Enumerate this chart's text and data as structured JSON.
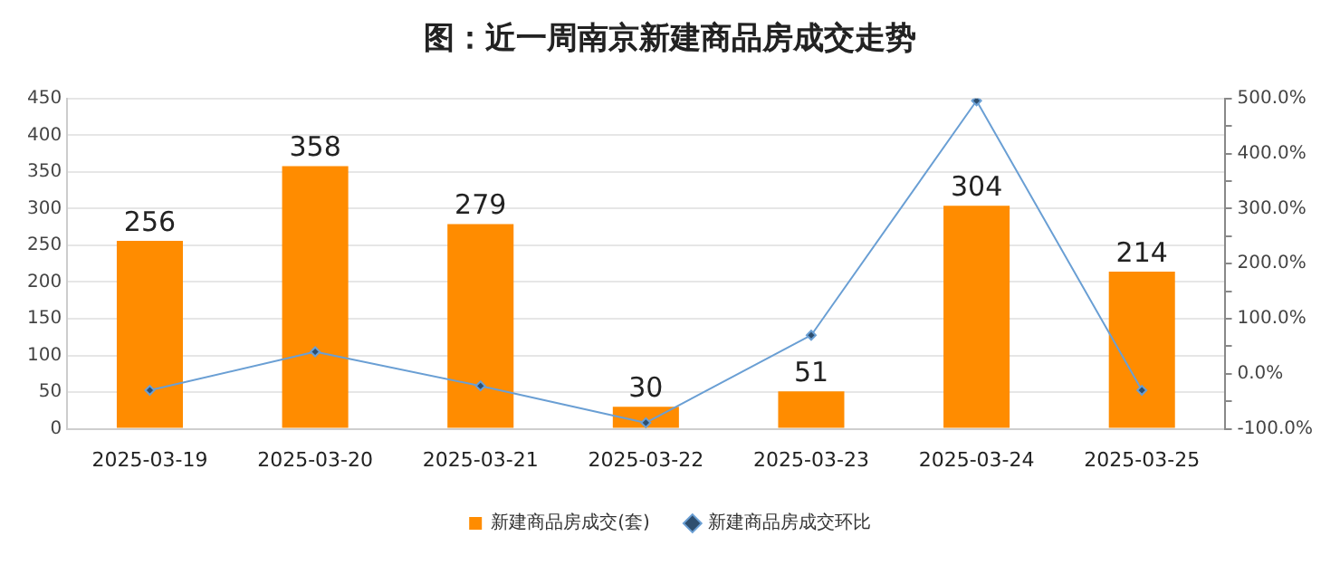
{
  "chart_data": {
    "type": "bar",
    "title": "图：近一周南京新建商品房成交走势",
    "categories": [
      "2025-03-19",
      "2025-03-20",
      "2025-03-21",
      "2025-03-22",
      "2025-03-23",
      "2025-03-24",
      "2025-03-25"
    ],
    "series": [
      {
        "name": "新建商品房成交(套)",
        "color": "#ff8c00",
        "values": [
          256,
          358,
          279,
          30,
          51,
          304,
          214
        ],
        "value_labels": [
          "256",
          "358",
          "279",
          "30",
          "51",
          "304",
          "214"
        ]
      },
      {
        "name": "新建商品房成交环比",
        "type": "line",
        "axis": "y2",
        "color": "#6a9fd4",
        "values": [
          -30,
          40,
          -22,
          -89,
          70,
          496,
          -30
        ]
      }
    ],
    "ylim": [
      0,
      450
    ],
    "yticks": [
      0,
      50,
      100,
      150,
      200,
      250,
      300,
      350,
      400,
      450
    ],
    "y2lim": [
      -100,
      500
    ],
    "y2ticks": [
      {
        "value": -100,
        "label": "-100.0%"
      },
      {
        "value": -50,
        "label": null
      },
      {
        "value": 0,
        "label": "0.0%"
      },
      {
        "value": 50,
        "label": null
      },
      {
        "value": 100,
        "label": "100.0%"
      },
      {
        "value": 150,
        "label": null
      },
      {
        "value": 200,
        "label": "200.0%"
      },
      {
        "value": 250,
        "label": null
      },
      {
        "value": 300,
        "label": "300.0%"
      },
      {
        "value": 350,
        "label": null
      },
      {
        "value": 400,
        "label": "400.0%"
      },
      {
        "value": 450,
        "label": null
      },
      {
        "value": 500,
        "label": "500.0%"
      }
    ],
    "grid": "y",
    "legend": "bottom",
    "marker": "diamond",
    "line_style": "solid"
  }
}
